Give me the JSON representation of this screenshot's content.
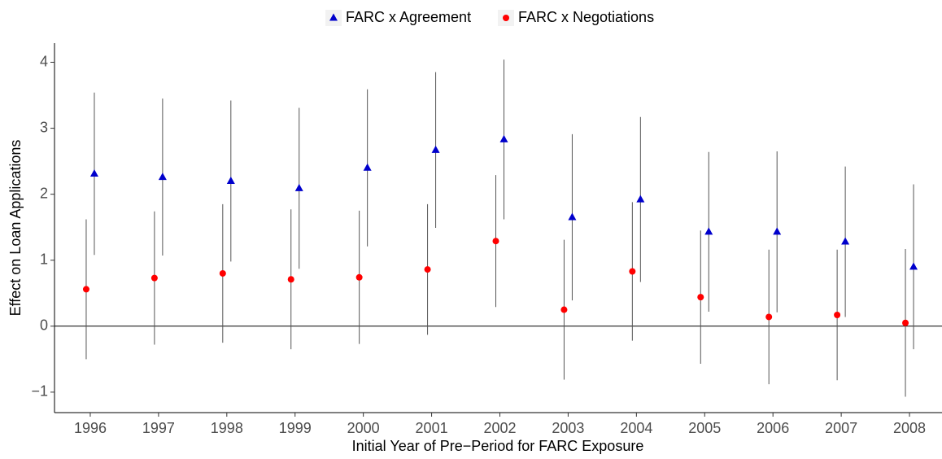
{
  "chart_data": {
    "type": "errorbar",
    "x_label": "Initial Year of Pre−Period for FARC Exposure",
    "y_label": "Effect on Loan Applications",
    "categories": [
      "1996",
      "1997",
      "1998",
      "1999",
      "2000",
      "2001",
      "2002",
      "2003",
      "2004",
      "2005",
      "2006",
      "2007",
      "2008"
    ],
    "ylim": [
      -1.31,
      4.29
    ],
    "yticks": [
      {
        "value": -1,
        "label": "−1"
      },
      0,
      1,
      2,
      3,
      4
    ],
    "reference_line": 0,
    "legend": "top",
    "series": [
      {
        "name": "FARC x Agreement",
        "color": "#0000cc",
        "marker": "triangle",
        "values": [
          2.31,
          2.26,
          2.2,
          2.09,
          2.4,
          2.67,
          2.83,
          1.65,
          1.92,
          1.43,
          1.43,
          1.28,
          0.9
        ],
        "errors": [
          1.23,
          1.19,
          1.22,
          1.22,
          1.19,
          1.18,
          1.21,
          1.26,
          1.25,
          1.21,
          1.22,
          1.14,
          1.25
        ]
      },
      {
        "name": "FARC x Negotiations",
        "color": "#ff0000",
        "marker": "circle",
        "values": [
          0.56,
          0.73,
          0.8,
          0.71,
          0.74,
          0.86,
          1.29,
          0.25,
          0.83,
          0.44,
          0.14,
          0.17,
          0.05
        ],
        "errors": [
          1.06,
          1.01,
          1.05,
          1.06,
          1.01,
          0.99,
          1.0,
          1.06,
          1.05,
          1.01,
          1.02,
          0.99,
          1.12
        ]
      }
    ]
  }
}
